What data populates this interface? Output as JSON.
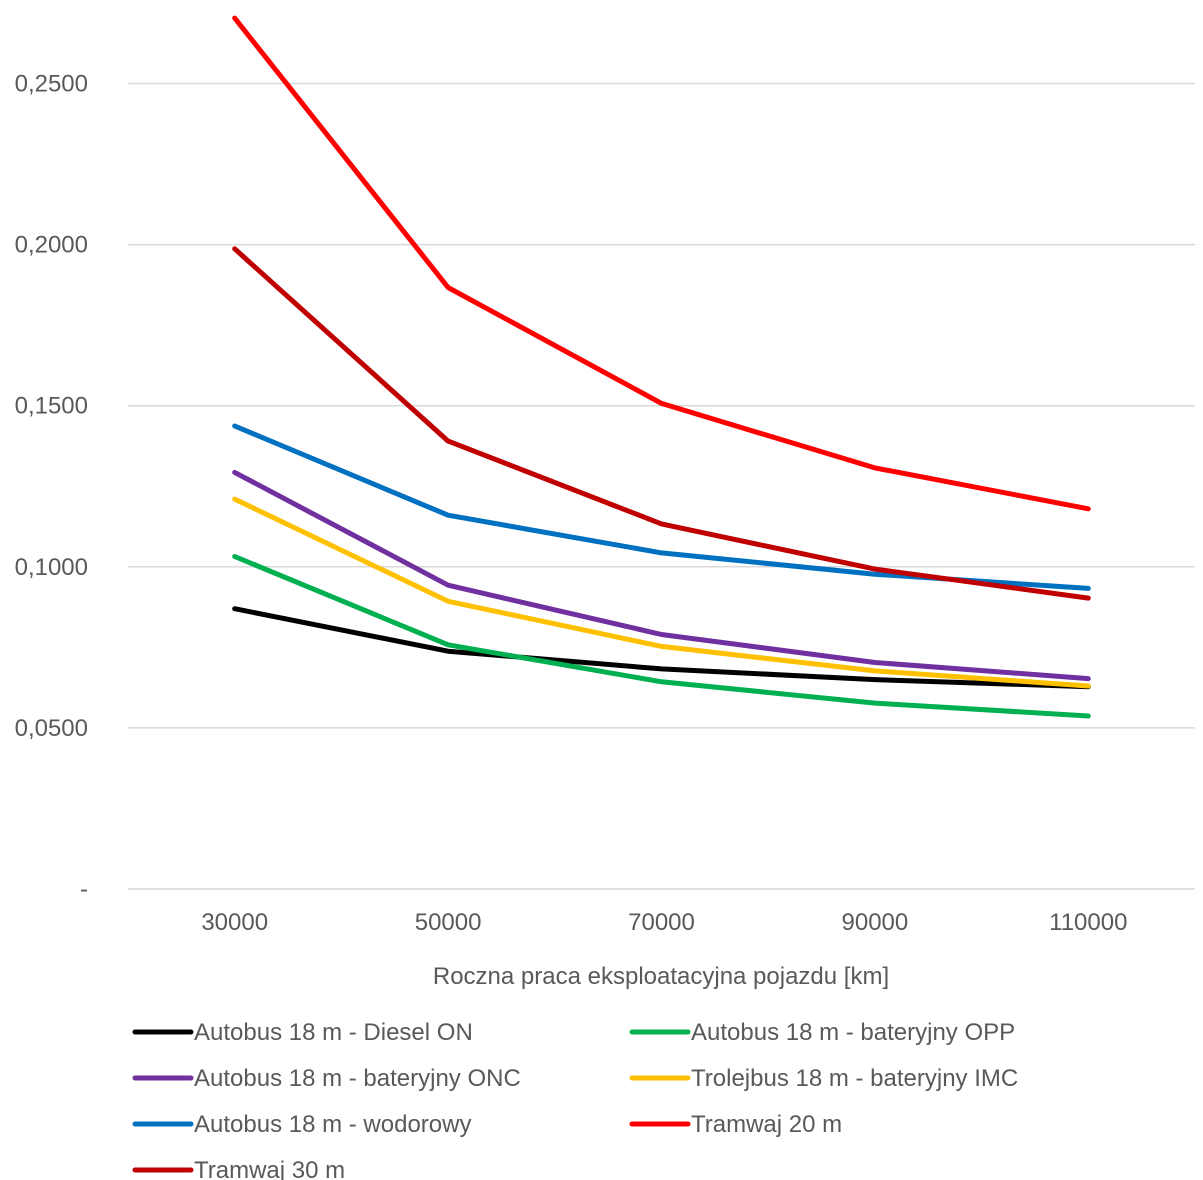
{
  "chart_data": {
    "type": "line",
    "title": "",
    "xlabel": "Roczna praca eksploatacyjna pojazdu [km]",
    "ylabel": "",
    "categories": [
      "30000",
      "50000",
      "70000",
      "90000",
      "110000"
    ],
    "y_ticks": [
      {
        "value": 0,
        "label": "-"
      },
      {
        "value": 0.05,
        "label": "0,0500"
      },
      {
        "value": 0.1,
        "label": "0,1000"
      },
      {
        "value": 0.15,
        "label": "0,1500"
      },
      {
        "value": 0.2,
        "label": "0,2000"
      },
      {
        "value": 0.25,
        "label": "0,2500"
      }
    ],
    "ylim": [
      0,
      0.27
    ],
    "grid": true,
    "legend_position": "bottom",
    "series": [
      {
        "name": "Autobus 18 m - Diesel ON",
        "color": "#000000",
        "values": [
          0.087,
          0.0738,
          0.0683,
          0.065,
          0.0628
        ]
      },
      {
        "name": "Autobus 18 m - bateryjny OPP",
        "color": "#00B050",
        "values": [
          0.1032,
          0.0758,
          0.0643,
          0.0577,
          0.0537
        ]
      },
      {
        "name": "Autobus 18 m - bateryjny ONC",
        "color": "#7030A0",
        "values": [
          0.1293,
          0.0943,
          0.079,
          0.0703,
          0.0653
        ]
      },
      {
        "name": "Trolejbus 18 m - bateryjny IMC",
        "color": "#FFC000",
        "values": [
          0.121,
          0.0893,
          0.0753,
          0.0677,
          0.063
        ]
      },
      {
        "name": "Autobus 18 m - wodorowy",
        "color": "#0070C0",
        "values": [
          0.1437,
          0.116,
          0.1043,
          0.0977,
          0.0933
        ]
      },
      {
        "name": "Tramwaj 20 m",
        "color": "#FF0000",
        "values": [
          0.2703,
          0.1867,
          0.1507,
          0.1307,
          0.118
        ]
      },
      {
        "name": "Tramwaj 30 m",
        "color": "#C00000",
        "values": [
          0.1987,
          0.139,
          0.1133,
          0.0993,
          0.0903
        ]
      }
    ]
  }
}
